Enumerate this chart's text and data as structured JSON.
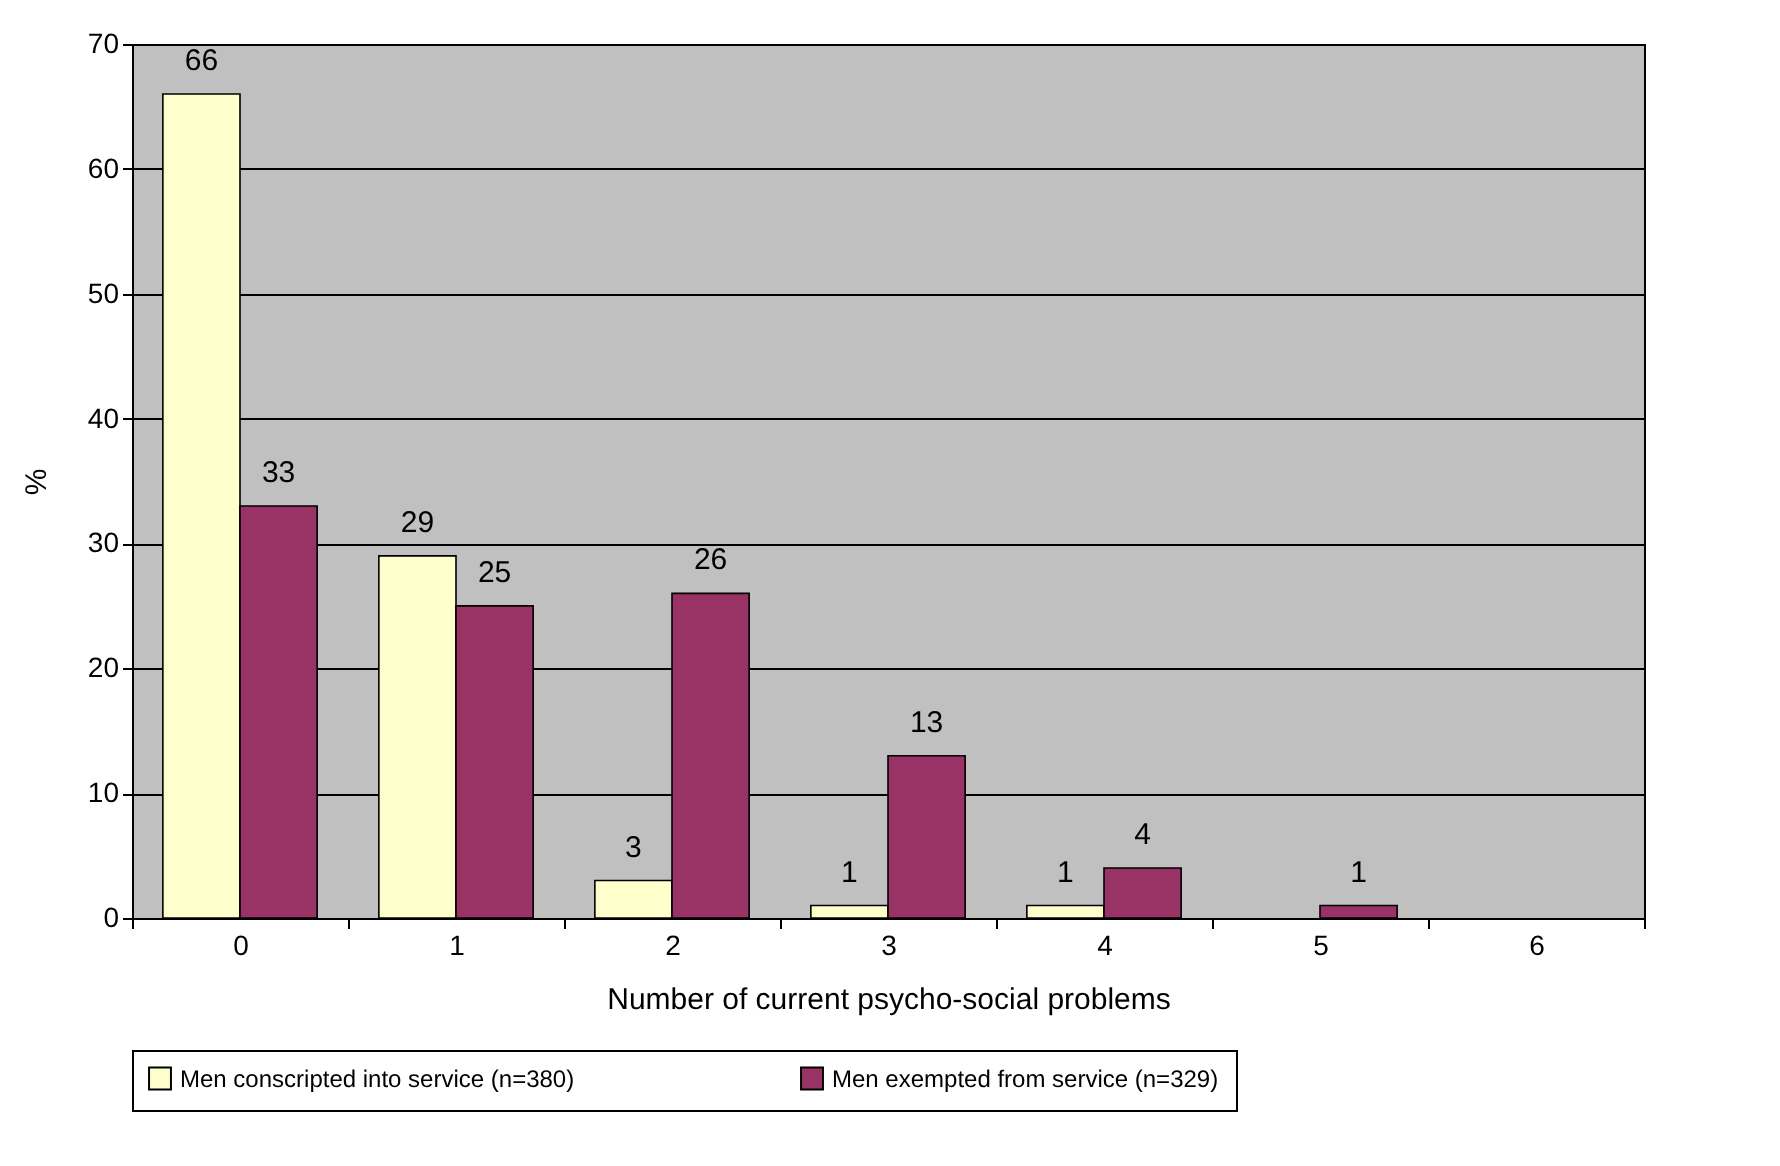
{
  "chart_data": {
    "type": "bar",
    "xlabel": "Number of current psycho-social problems",
    "ylabel": "%",
    "categories": [
      "0",
      "1",
      "2",
      "3",
      "4",
      "5",
      "6"
    ],
    "series": [
      {
        "name": "Men conscripted into service (n=380)",
        "color": "#ffffcc",
        "values": [
          66,
          29,
          3,
          1,
          1,
          null,
          null
        ]
      },
      {
        "name": "Men exempted from service (n=329)",
        "color": "#993366",
        "values": [
          33,
          25,
          26,
          13,
          4,
          1,
          null
        ]
      }
    ],
    "ylim": [
      0,
      70
    ],
    "yticks": [
      0,
      10,
      20,
      30,
      40,
      50,
      60,
      70
    ],
    "grid": "y",
    "legend": "bottom",
    "data_labels": true
  }
}
